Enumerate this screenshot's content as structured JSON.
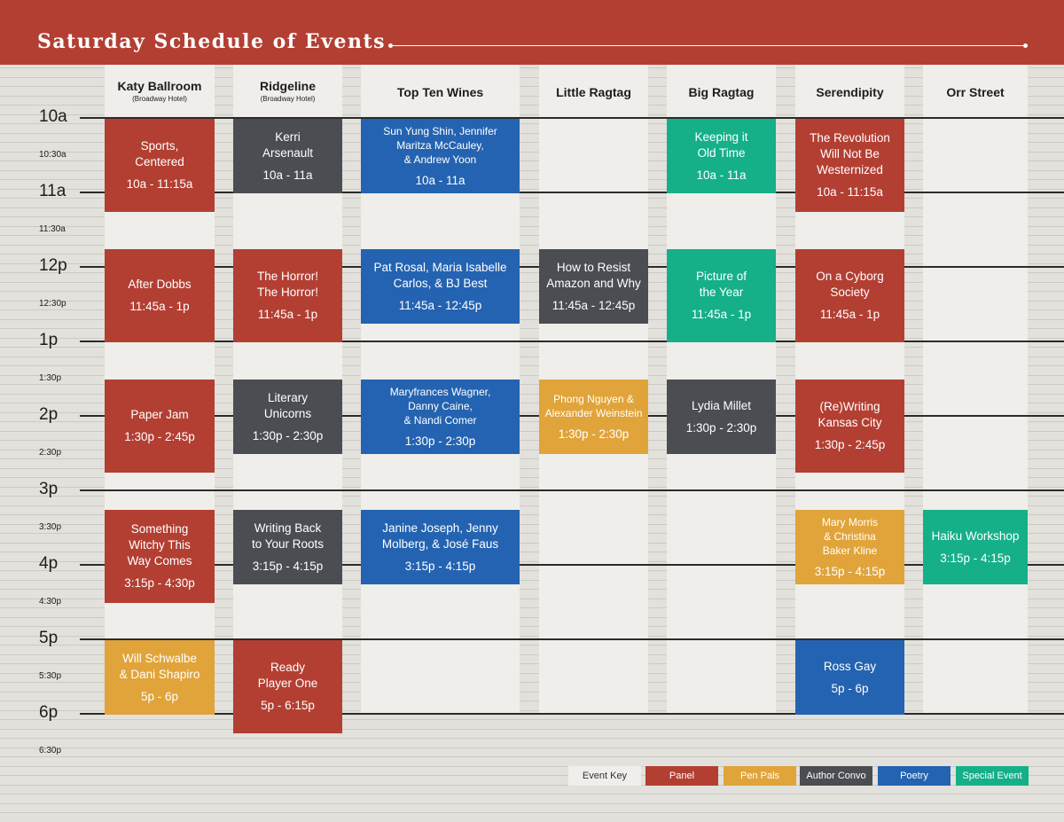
{
  "title": "Saturday Schedule of Events",
  "times": [
    {
      "label": "10a",
      "kind": "hour"
    },
    {
      "label": "10:30a",
      "kind": "half"
    },
    {
      "label": "11a",
      "kind": "hour"
    },
    {
      "label": "11:30a",
      "kind": "half"
    },
    {
      "label": "12p",
      "kind": "hour"
    },
    {
      "label": "12:30p",
      "kind": "half"
    },
    {
      "label": "1p",
      "kind": "hour"
    },
    {
      "label": "1:30p",
      "kind": "half"
    },
    {
      "label": "2p",
      "kind": "hour"
    },
    {
      "label": "2:30p",
      "kind": "half"
    },
    {
      "label": "3p",
      "kind": "hour"
    },
    {
      "label": "3:30p",
      "kind": "half"
    },
    {
      "label": "4p",
      "kind": "hour"
    },
    {
      "label": "4:30p",
      "kind": "half"
    },
    {
      "label": "5p",
      "kind": "hour"
    },
    {
      "label": "5:30p",
      "kind": "half"
    },
    {
      "label": "6p",
      "kind": "hour"
    },
    {
      "label": "6:30p",
      "kind": "half"
    }
  ],
  "venues": [
    {
      "name": "Katy Ballroom",
      "sub": "(Broadway Hotel)"
    },
    {
      "name": "Ridgeline",
      "sub": "(Broadway Hotel)"
    },
    {
      "name": "Top Ten Wines",
      "sub": ""
    },
    {
      "name": "Little Ragtag",
      "sub": ""
    },
    {
      "name": "Big Ragtag",
      "sub": ""
    },
    {
      "name": "Serendipity",
      "sub": ""
    },
    {
      "name": "Orr Street",
      "sub": ""
    }
  ],
  "events": [
    {
      "venue": 0,
      "start": "10:00",
      "end": "11:15",
      "type": "panel",
      "title": [
        "Sports,",
        "Centered"
      ],
      "time": "10a - 11:15a"
    },
    {
      "venue": 0,
      "start": "11:45",
      "end": "13:00",
      "type": "panel",
      "title": [
        "After Dobbs"
      ],
      "time": "11:45a - 1p"
    },
    {
      "venue": 0,
      "start": "13:30",
      "end": "14:45",
      "type": "panel",
      "title": [
        "Paper Jam"
      ],
      "time": "1:30p - 2:45p"
    },
    {
      "venue": 0,
      "start": "15:15",
      "end": "16:30",
      "type": "panel",
      "title": [
        "Something",
        "Witchy This",
        "Way Comes"
      ],
      "time": "3:15p - 4:30p"
    },
    {
      "venue": 0,
      "start": "17:00",
      "end": "18:00",
      "type": "penpals",
      "title": [
        "Will Schwalbe",
        "& Dani Shapiro"
      ],
      "time": "5p - 6p"
    },
    {
      "venue": 1,
      "start": "10:00",
      "end": "11:00",
      "type": "author",
      "title": [
        "Kerri",
        "Arsenault"
      ],
      "time": "10a - 11a"
    },
    {
      "venue": 1,
      "start": "11:45",
      "end": "13:00",
      "type": "panel",
      "title": [
        "The Horror!",
        "The Horror!"
      ],
      "time": "11:45a - 1p"
    },
    {
      "venue": 1,
      "start": "13:30",
      "end": "14:30",
      "type": "author",
      "title": [
        "Literary",
        "Unicorns"
      ],
      "time": "1:30p - 2:30p"
    },
    {
      "venue": 1,
      "start": "15:15",
      "end": "16:15",
      "type": "author",
      "title": [
        "Writing Back",
        "to Your Roots"
      ],
      "time": "3:15p - 4:15p"
    },
    {
      "venue": 1,
      "start": "17:00",
      "end": "18:15",
      "type": "panel",
      "title": [
        "Ready",
        "Player One"
      ],
      "time": "5p - 6:15p"
    },
    {
      "venue": 2,
      "start": "10:00",
      "end": "11:00",
      "type": "poetry",
      "small": true,
      "title": [
        "Sun Yung Shin, Jennifer",
        "Maritza  McCauley,",
        "& Andrew Yoon"
      ],
      "time": "10a - 11a"
    },
    {
      "venue": 2,
      "start": "11:45",
      "end": "12:45",
      "type": "poetry",
      "title": [
        "Pat Rosal, Maria Isabelle",
        "Carlos, & BJ Best"
      ],
      "time": "11:45a - 12:45p"
    },
    {
      "venue": 2,
      "start": "13:30",
      "end": "14:30",
      "type": "poetry",
      "small": true,
      "title": [
        "Maryfrances Wagner,",
        "Danny Caine,",
        "& Nandi Comer"
      ],
      "time": "1:30p - 2:30p"
    },
    {
      "venue": 2,
      "start": "15:15",
      "end": "16:15",
      "type": "poetry",
      "title": [
        "Janine Joseph, Jenny",
        "Molberg, & José Faus"
      ],
      "time": "3:15p - 4:15p"
    },
    {
      "venue": 3,
      "start": "11:45",
      "end": "12:45",
      "type": "author",
      "title": [
        "How to Resist",
        "Amazon and Why"
      ],
      "time": "11:45a - 12:45p"
    },
    {
      "venue": 3,
      "start": "13:30",
      "end": "14:30",
      "type": "penpals",
      "small": true,
      "title": [
        "Phong Nguyen &",
        "Alexander Weinstein"
      ],
      "time": "1:30p - 2:30p"
    },
    {
      "venue": 4,
      "start": "10:00",
      "end": "11:00",
      "type": "special",
      "title": [
        "Keeping it",
        "Old Time"
      ],
      "time": "10a - 11a"
    },
    {
      "venue": 4,
      "start": "11:45",
      "end": "13:00",
      "type": "special",
      "title": [
        "Picture of",
        "the Year"
      ],
      "time": "11:45a - 1p"
    },
    {
      "venue": 4,
      "start": "13:30",
      "end": "14:30",
      "type": "author",
      "title": [
        "Lydia Millet"
      ],
      "time": "1:30p - 2:30p"
    },
    {
      "venue": 5,
      "start": "10:00",
      "end": "11:15",
      "type": "panel",
      "title": [
        "The Revolution",
        "Will Not Be",
        "Westernized"
      ],
      "time": "10a - 11:15a"
    },
    {
      "venue": 5,
      "start": "11:45",
      "end": "13:00",
      "type": "panel",
      "title": [
        "On a Cyborg",
        "Society"
      ],
      "time": "11:45a - 1p"
    },
    {
      "venue": 5,
      "start": "13:30",
      "end": "14:45",
      "type": "panel",
      "title": [
        "(Re)Writing",
        "Kansas City"
      ],
      "time": "1:30p - 2:45p"
    },
    {
      "venue": 5,
      "start": "15:15",
      "end": "16:15",
      "type": "penpals",
      "small": true,
      "title": [
        "Mary Morris",
        "& Christina",
        "Baker Kline"
      ],
      "time": "3:15p - 4:15p"
    },
    {
      "venue": 5,
      "start": "17:00",
      "end": "18:00",
      "type": "poetry",
      "title": [
        "Ross Gay"
      ],
      "time": "5p - 6p"
    },
    {
      "venue": 6,
      "start": "15:15",
      "end": "16:15",
      "type": "special",
      "title": [
        "Haiku Workshop"
      ],
      "time": "3:15p - 4:15p"
    }
  ],
  "key": [
    {
      "label": "Event Key",
      "type": "key"
    },
    {
      "label": "Panel",
      "type": "panel"
    },
    {
      "label": "Pen Pals",
      "type": "penpals"
    },
    {
      "label": "Author Convo",
      "type": "author"
    },
    {
      "label": "Poetry",
      "type": "poetry"
    },
    {
      "label": "Special Event",
      "type": "special"
    }
  ],
  "colors": {
    "panel": "#b33f33",
    "pen_pals": "#e1a43a",
    "author_convo": "#4b4d52",
    "poetry": "#2463b1",
    "special_event": "#15b088",
    "header": "#b33f33"
  }
}
